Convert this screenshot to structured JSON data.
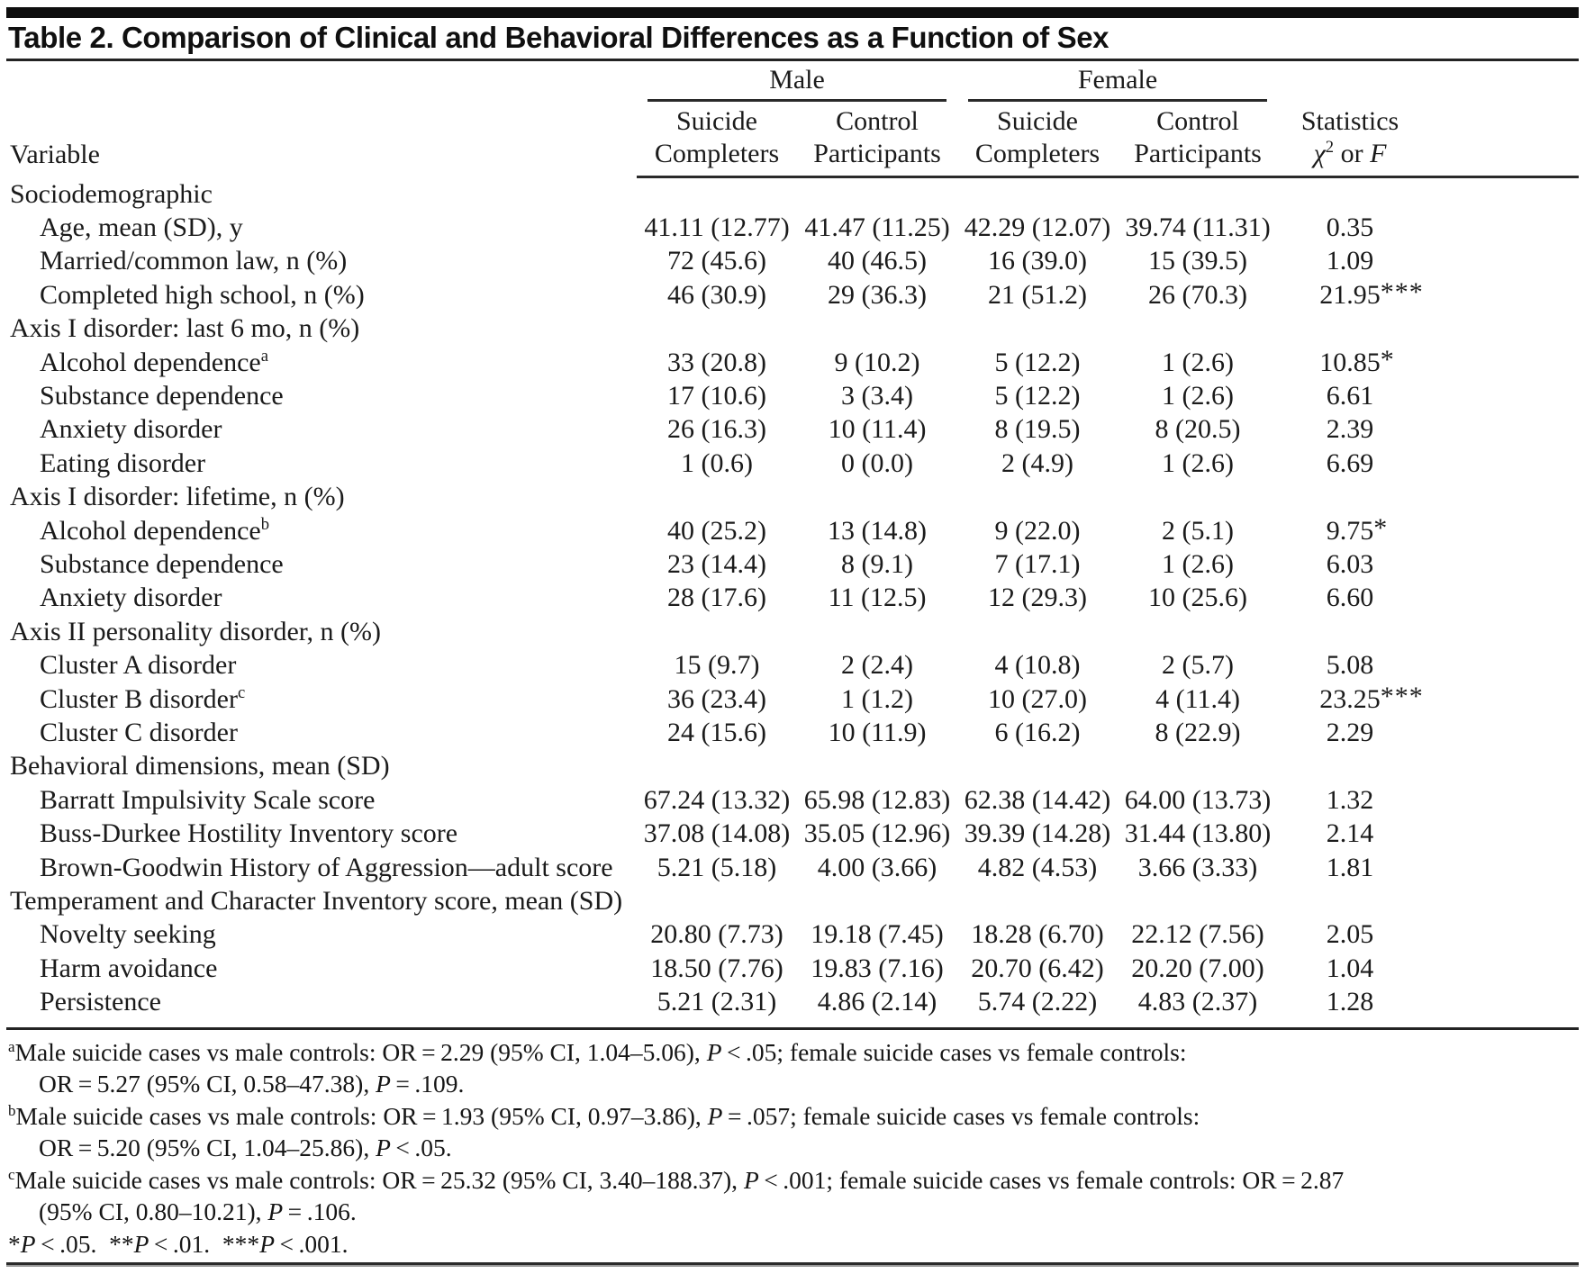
{
  "title": "Table 2. Comparison of Clinical and Behavioral Differences as a Function of Sex",
  "colors": {
    "rule": "#232323",
    "text": "#1b1b1b",
    "topbar": "#0e0e0e"
  },
  "header": {
    "variable": "Variable",
    "groups": [
      {
        "label": "Male"
      },
      {
        "label": "Female"
      }
    ],
    "columns": [
      {
        "line1": "Suicide",
        "line2": "Completers"
      },
      {
        "line1": "Control",
        "line2": "Participants"
      },
      {
        "line1": "Suicide",
        "line2": "Completers"
      },
      {
        "line1": "Control",
        "line2": "Participants"
      }
    ],
    "stats": {
      "line1": "Statistics",
      "chi": "χ",
      "chi_sup": "2",
      "mid": " or ",
      "f": "F"
    }
  },
  "rows": [
    {
      "label": "Sociodemographic",
      "section": true,
      "values": [
        "",
        "",
        "",
        "",
        ""
      ]
    },
    {
      "label": "Age, mean (SD), y",
      "values": [
        "41.11 (12.77)",
        "41.47 (11.25)",
        "42.29 (12.07)",
        "39.74 (11.31)",
        "0.35"
      ]
    },
    {
      "label": "Married/common law, n (%)",
      "values": [
        "72 (45.6)",
        "40 (46.5)",
        "16 (39.0)",
        "15 (39.5)",
        "1.09"
      ]
    },
    {
      "label": "Completed high school, n (%)",
      "values": [
        "46 (30.9)",
        "29 (36.3)",
        "21 (51.2)",
        "26 (70.3)",
        "21.95***"
      ]
    },
    {
      "label": "Axis I disorder: last 6 mo, n (%)",
      "section": true,
      "values": [
        "",
        "",
        "",
        "",
        ""
      ]
    },
    {
      "label": "Alcohol dependence",
      "sup": "a",
      "values": [
        "33 (20.8)",
        "9 (10.2)",
        "5 (12.2)",
        "1 (2.6)",
        "10.85*"
      ]
    },
    {
      "label": "Substance dependence",
      "values": [
        "17 (10.6)",
        "3 (3.4)",
        "5 (12.2)",
        "1 (2.6)",
        "6.61"
      ]
    },
    {
      "label": "Anxiety disorder",
      "values": [
        "26 (16.3)",
        "10 (11.4)",
        "8 (19.5)",
        "8 (20.5)",
        "2.39"
      ]
    },
    {
      "label": "Eating disorder",
      "values": [
        "1 (0.6)",
        "0 (0.0)",
        "2 (4.9)",
        "1 (2.6)",
        "6.69"
      ]
    },
    {
      "label": "Axis I disorder: lifetime, n (%)",
      "section": true,
      "values": [
        "",
        "",
        "",
        "",
        ""
      ]
    },
    {
      "label": "Alcohol dependence",
      "sup": "b",
      "values": [
        "40 (25.2)",
        "13 (14.8)",
        "9 (22.0)",
        "2 (5.1)",
        "9.75*"
      ]
    },
    {
      "label": "Substance dependence",
      "values": [
        "23 (14.4)",
        "8 (9.1)",
        "7 (17.1)",
        "1 (2.6)",
        "6.03"
      ]
    },
    {
      "label": "Anxiety disorder",
      "values": [
        "28 (17.6)",
        "11 (12.5)",
        "12 (29.3)",
        "10 (25.6)",
        "6.60"
      ]
    },
    {
      "label": "Axis II personality disorder, n (%)",
      "section": true,
      "values": [
        "",
        "",
        "",
        "",
        ""
      ]
    },
    {
      "label": "Cluster A disorder",
      "values": [
        "15 (9.7)",
        "2 (2.4)",
        "4 (10.8)",
        "2 (5.7)",
        "5.08"
      ]
    },
    {
      "label": "Cluster B disorder",
      "sup": "c",
      "values": [
        "36 (23.4)",
        "1 (1.2)",
        "10 (27.0)",
        "4 (11.4)",
        "23.25***"
      ]
    },
    {
      "label": "Cluster C disorder",
      "values": [
        "24 (15.6)",
        "10 (11.9)",
        "6 (16.2)",
        "8 (22.9)",
        "2.29"
      ]
    },
    {
      "label": "Behavioral dimensions, mean (SD)",
      "section": true,
      "values": [
        "",
        "",
        "",
        "",
        ""
      ]
    },
    {
      "label": "Barratt Impulsivity Scale score",
      "values": [
        "67.24 (13.32)",
        "65.98 (12.83)",
        "62.38 (14.42)",
        "64.00 (13.73)",
        "1.32"
      ]
    },
    {
      "label": "Buss-Durkee Hostility Inventory score",
      "values": [
        "37.08 (14.08)",
        "35.05 (12.96)",
        "39.39 (14.28)",
        "31.44 (13.80)",
        "2.14"
      ]
    },
    {
      "label": "Brown-Goodwin History of Aggression—adult score",
      "values": [
        "5.21 (5.18)",
        "4.00 (3.66)",
        "4.82 (4.53)",
        "3.66 (3.33)",
        "1.81"
      ]
    },
    {
      "label": "Temperament and Character Inventory score, mean (SD)",
      "section": true,
      "values": [
        "",
        "",
        "",
        "",
        ""
      ]
    },
    {
      "label": "Novelty seeking",
      "values": [
        "20.80 (7.73)",
        "19.18 (7.45)",
        "18.28 (6.70)",
        "22.12 (7.56)",
        "2.05"
      ]
    },
    {
      "label": "Harm avoidance",
      "values": [
        "18.50 (7.76)",
        "19.83 (7.16)",
        "20.70 (6.42)",
        "20.20 (7.00)",
        "1.04"
      ]
    },
    {
      "label": "Persistence",
      "values": [
        "5.21 (2.31)",
        "4.86 (2.14)",
        "5.74 (2.22)",
        "4.83 (2.37)",
        "1.28"
      ]
    }
  ],
  "footnotes": [
    {
      "marker": "a",
      "segments": [
        {
          "sup": "a"
        },
        {
          "t": "Male suicide cases vs male controls: OR = 2.29 (95% CI, 1.04–5.06), "
        },
        {
          "i": "P"
        },
        {
          "t": " < .05; female suicide cases vs female controls:"
        },
        {
          "br": true
        },
        {
          "t": "OR = 5.27 (95% CI, 0.58–47.38), "
        },
        {
          "i": "P"
        },
        {
          "t": " = .109."
        }
      ]
    },
    {
      "marker": "b",
      "segments": [
        {
          "sup": "b"
        },
        {
          "t": "Male suicide cases vs male controls: OR = 1.93 (95% CI, 0.97–3.86), "
        },
        {
          "i": "P"
        },
        {
          "t": " = .057; female suicide cases vs female controls:"
        },
        {
          "br": true
        },
        {
          "t": "OR = 5.20 (95% CI, 1.04–25.86), "
        },
        {
          "i": "P"
        },
        {
          "t": " < .05."
        }
      ]
    },
    {
      "marker": "c",
      "segments": [
        {
          "sup": "c"
        },
        {
          "t": "Male suicide cases vs male controls: OR = 25.32 (95% CI, 3.40–188.37), "
        },
        {
          "i": "P"
        },
        {
          "t": " < .001; female suicide cases vs female controls: OR = 2.87"
        },
        {
          "br": true
        },
        {
          "t": "(95% CI, 0.80–10.21), "
        },
        {
          "i": "P"
        },
        {
          "t": " = .106."
        }
      ]
    }
  ],
  "significance": {
    "segments": [
      {
        "t": "*"
      },
      {
        "i": "P"
      },
      {
        "t": " < .05. **"
      },
      {
        "i": "P"
      },
      {
        "t": " < .01. ***"
      },
      {
        "i": "P"
      },
      {
        "t": " < .001."
      }
    ]
  }
}
